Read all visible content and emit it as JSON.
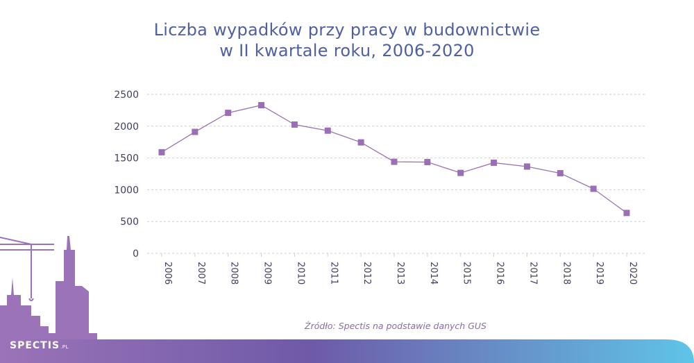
{
  "title": {
    "line1": "Liczba wypadków przy pracy w budownictwie",
    "line2": "w II kwartale roku, 2006-2020"
  },
  "source": "Źródło: Spectis na podstawie danych GUS",
  "logo": {
    "name": "SPECTIS",
    "suffix": ".PL"
  },
  "colors": {
    "title": "#4f5fa1",
    "series": "#9b6fb5",
    "grid": "#cfcfd6",
    "axis_text": "#3d3f5e"
  },
  "chart_data": {
    "type": "line",
    "x": [
      "2006",
      "2007",
      "2008",
      "2009",
      "2010",
      "2011",
      "2012",
      "2013",
      "2014",
      "2015",
      "2016",
      "2017",
      "2018",
      "2019",
      "2020"
    ],
    "series": [
      {
        "values": [
          1590,
          1910,
          2210,
          2330,
          2025,
          1930,
          1745,
          1440,
          1435,
          1265,
          1425,
          1365,
          1260,
          1015,
          635
        ]
      }
    ],
    "yticks": [
      "0",
      "500",
      "1000",
      "1500",
      "2000",
      "2500"
    ],
    "ylim": [
      0,
      2500
    ],
    "grid": "horizontal dashed",
    "legend": "none"
  }
}
